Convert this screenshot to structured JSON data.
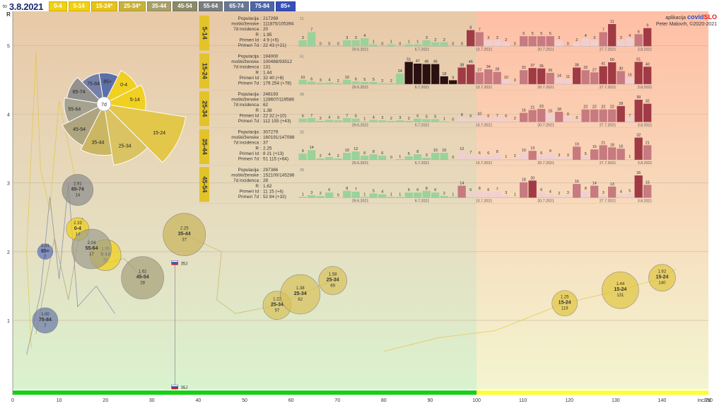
{
  "header": {
    "date_prefix": "to",
    "date": "3.8.2021",
    "age_buttons": [
      {
        "label": "0-4",
        "color": "#f2d012"
      },
      {
        "label": "5-14",
        "color": "#f2d012"
      },
      {
        "label": "15-24*",
        "color": "#e6c21a"
      },
      {
        "label": "25-34*",
        "color": "#c9b23a"
      },
      {
        "label": "35-44",
        "color": "#a89f6a"
      },
      {
        "label": "45-54",
        "color": "#8b8b68"
      },
      {
        "label": "55-64",
        "color": "#7a7e7e"
      },
      {
        "label": "65-74",
        "color": "#687894"
      },
      {
        "label": "75-84",
        "color": "#4f65a8"
      },
      {
        "label": "85+",
        "color": "#3550b8"
      }
    ]
  },
  "credit": {
    "prefix": "aplikacija",
    "brand_a": "covid",
    "brand_b": "SLO",
    "author": "Peter Malovrh, ©2020-2021"
  },
  "colors": {
    "green_zone": "#d9f2cf",
    "orange_zone": "#ffbfa6",
    "green_bar": "#15d115",
    "yellow_bar": "#ffff33",
    "panel_label": "#e3c32a"
  },
  "chart_data": [
    {
      "type": "scatter",
      "title": "R vs incidence",
      "xlabel": "inc/7d",
      "ylabel": "R",
      "xlim": [
        0,
        150
      ],
      "ylim": [
        0,
        5.5
      ],
      "x_ticks": [
        0,
        10,
        20,
        30,
        40,
        50,
        60,
        70,
        80,
        90,
        100,
        110,
        120,
        130,
        140,
        150
      ],
      "y_ticks": [
        1,
        2,
        3,
        4,
        5
      ],
      "zone_split_x": 100,
      "marker_labels": [
        "35J",
        "35J"
      ],
      "bubbles": [
        {
          "r": "2.91",
          "label": "65-74",
          "inc": "14",
          "x": 14,
          "y": 2.9,
          "size": 22,
          "color": "#8c8c8c"
        },
        {
          "r": "2.33",
          "label": "0-4",
          "inc": "14",
          "x": 14,
          "y": 2.33,
          "size": 16,
          "color": "#f2d012"
        },
        {
          "r": "2.01",
          "label": "85+",
          "inc": "7",
          "x": 7,
          "y": 2.0,
          "size": 11,
          "color": "#5a6fc0"
        },
        {
          "r": "1.95",
          "label": "5-14",
          "inc": "20",
          "x": 20,
          "y": 1.95,
          "size": 22,
          "color": "#f2d012"
        },
        {
          "r": "2.04",
          "label": "55-64",
          "inc": "17",
          "x": 17,
          "y": 2.04,
          "size": 28,
          "color": "#9e9e8c"
        },
        {
          "r": "1.62",
          "label": "45-54",
          "inc": "28",
          "x": 28,
          "y": 1.62,
          "size": 30,
          "color": "#a8a07a"
        },
        {
          "r": "2.25",
          "label": "35-44",
          "inc": "37",
          "x": 37,
          "y": 2.25,
          "size": 30,
          "color": "#c9b45a"
        },
        {
          "r": "1.00",
          "label": "75-84",
          "inc": "7",
          "x": 7,
          "y": 1.0,
          "size": 18,
          "color": "#6878a8"
        },
        {
          "r": "1.22",
          "label": "25-34",
          "inc": "57",
          "x": 57,
          "y": 1.22,
          "size": 20,
          "color": "#d8c25a"
        },
        {
          "r": "1.38",
          "label": "25-34",
          "inc": "62",
          "x": 62,
          "y": 1.38,
          "size": 28,
          "color": "#d8c25a"
        },
        {
          "r": "1.58",
          "label": "25-34",
          "inc": "69",
          "x": 69,
          "y": 1.58,
          "size": 20,
          "color": "#d8c25a"
        },
        {
          "r": "1.25",
          "label": "15-24",
          "inc": "119",
          "x": 119,
          "y": 1.25,
          "size": 18,
          "color": "#e2c640"
        },
        {
          "r": "1.44",
          "label": "15-24",
          "inc": "131",
          "x": 131,
          "y": 1.44,
          "size": 26,
          "color": "#e2c640"
        },
        {
          "r": "1.62",
          "label": "15-24",
          "inc": "140",
          "x": 140,
          "y": 1.62,
          "size": 19,
          "color": "#e2c640"
        }
      ]
    },
    {
      "type": "pie",
      "title": "7d",
      "center_label": "7d",
      "slices": [
        {
          "label": "0-4",
          "value": 14,
          "color": "#f2d012"
        },
        {
          "label": "5-14",
          "value": 20,
          "color": "#f2d012"
        },
        {
          "label": "15-24",
          "value": 131,
          "color": "#e2c640"
        },
        {
          "label": "25-34",
          "value": 62,
          "color": "#d8c25a"
        },
        {
          "label": "35-44",
          "value": 37,
          "color": "#c9b45a"
        },
        {
          "label": "45-54",
          "value": 28,
          "color": "#a8a07a"
        },
        {
          "label": "55-64",
          "value": 17,
          "color": "#9e9e8c"
        },
        {
          "label": "65-74",
          "value": 14,
          "color": "#8c8c8c"
        },
        {
          "label": "75-84",
          "value": 7,
          "color": "#6878a8"
        },
        {
          "label": "85+",
          "value": 7,
          "color": "#4f65a8"
        }
      ]
    },
    {
      "type": "bar",
      "title": "Daily cases by age group",
      "date_labels": [
        "29.6.2021",
        "6.7.2021",
        "13.7.2021",
        "20.7.2021",
        "27.7.2021",
        "3.8.2021"
      ],
      "panels": [
        {
          "label": "5-14",
          "ymax": "11",
          "stats": [
            {
              "k": "Populacija",
              "v": "217269"
            },
            {
              "k": "moški/ženske",
              "v": "111875/105394"
            },
            {
              "k": "7d incidenca",
              "v": "20"
            },
            {
              "k": "R",
              "v": "1.95"
            },
            {
              "k": "Primeri Id",
              "v": "4 9 (+5)"
            },
            {
              "k": "Primeri 7d",
              "v": "22 43 (+21)"
            }
          ],
          "values": [
            3,
            7,
            0,
            0,
            0,
            3,
            3,
            4,
            1,
            0,
            1,
            0,
            1,
            1,
            3,
            2,
            2,
            0,
            0,
            8,
            7,
            3,
            3,
            2,
            0,
            5,
            5,
            5,
            5,
            3,
            0,
            2,
            4,
            3,
            7,
            11,
            3,
            4,
            6,
            9
          ]
        },
        {
          "label": "15-24",
          "ymax": "51",
          "stats": [
            {
              "k": "Populacija",
              "v": "194000"
            },
            {
              "k": "moški/ženske",
              "v": "100488/93512"
            },
            {
              "k": "7d incidenca",
              "v": "131"
            },
            {
              "k": "R",
              "v": "1.44"
            },
            {
              "k": "Primeri Id",
              "v": "32 40 (+8)"
            },
            {
              "k": "Primeri 7d",
              "v": "176 254 (+78)"
            }
          ],
          "values": [
            10,
            6,
            3,
            4,
            2,
            10,
            6,
            5,
            5,
            2,
            2,
            24,
            51,
            47,
            46,
            46,
            18,
            9,
            38,
            45,
            27,
            34,
            28,
            10,
            3,
            32,
            37,
            36,
            26,
            14,
            11,
            38,
            32,
            27,
            41,
            50,
            30,
            15,
            51,
            40
          ]
        },
        {
          "label": "25-34",
          "ymax": "39",
          "stats": [
            {
              "k": "Populacija",
              "v": "248193"
            },
            {
              "k": "moški/ženske",
              "v": "128607/119586"
            },
            {
              "k": "7d incidenca",
              "v": "62"
            },
            {
              "k": "R",
              "v": "1.38"
            },
            {
              "k": "Primeri Id",
              "v": "22 32 (+10)"
            },
            {
              "k": "Primeri 7d",
              "v": "112 155 (+43)"
            }
          ],
          "values": [
            6,
            7,
            2,
            4,
            3,
            7,
            6,
            1,
            4,
            3,
            2,
            3,
            2,
            6,
            5,
            5,
            1,
            0,
            8,
            6,
            10,
            6,
            7,
            6,
            2,
            16,
            21,
            23,
            15,
            18,
            9,
            3,
            22,
            22,
            22,
            22,
            28,
            7,
            39,
            32
          ]
        },
        {
          "label": "35-44",
          "ymax": "32",
          "stats": [
            {
              "k": "Populacija",
              "v": "307279"
            },
            {
              "k": "moški/ženske",
              "v": "160191/147088"
            },
            {
              "k": "7d incidenca",
              "v": "37"
            },
            {
              "k": "R",
              "v": "2.25"
            },
            {
              "k": "Primeri Id",
              "v": "8 21 (+13)"
            },
            {
              "k": "Primeri 7d",
              "v": "51 115 (+64)"
            }
          ],
          "values": [
            9,
            14,
            2,
            4,
            2,
            10,
            12,
            6,
            8,
            6,
            0,
            1,
            5,
            8,
            3,
            10,
            10,
            0,
            12,
            7,
            6,
            6,
            8,
            1,
            2,
            10,
            13,
            6,
            9,
            3,
            3,
            19,
            5,
            15,
            21,
            18,
            16,
            1,
            32,
            21
          ]
        },
        {
          "label": "45-54",
          "ymax": "26",
          "stats": [
            {
              "k": "Populacija",
              "v": "297386"
            },
            {
              "k": "moški/ženske",
              "v": "152100/145286"
            },
            {
              "k": "7d incidenca",
              "v": "28"
            },
            {
              "k": "R",
              "v": "1.62"
            },
            {
              "k": "Primeri Id",
              "v": "11 15 (+4)"
            },
            {
              "k": "Primeri 7d",
              "v": "52 84 (+32)"
            }
          ],
          "values": [
            1,
            3,
            2,
            6,
            0,
            8,
            7,
            1,
            5,
            4,
            1,
            1,
            6,
            6,
            8,
            6,
            2,
            1,
            14,
            6,
            8,
            6,
            7,
            3,
            1,
            18,
            20,
            6,
            4,
            2,
            3,
            16,
            8,
            14,
            3,
            13,
            4,
            5,
            26,
            15
          ]
        }
      ]
    }
  ]
}
